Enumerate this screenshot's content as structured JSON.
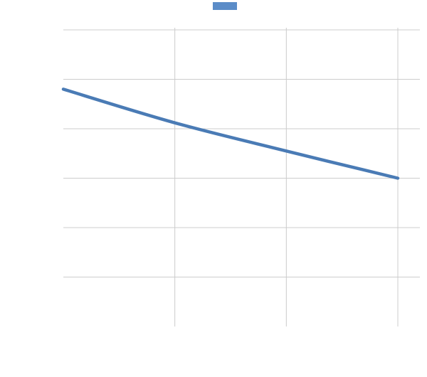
{
  "chart_data": {
    "type": "line",
    "title": "",
    "xlabel": "",
    "ylabel": "",
    "x": [
      0,
      1,
      2,
      3
    ],
    "series": [
      {
        "values": [
          4.8,
          4.12,
          3.55,
          3.0
        ],
        "color": "#4a7bb5"
      }
    ],
    "xlim": [
      0,
      3
    ],
    "ylim": [
      0,
      6
    ],
    "grid": true,
    "legend": "top-center",
    "legend_swatch_color": "#5b8cc8",
    "grid_color": "#cccccc"
  }
}
